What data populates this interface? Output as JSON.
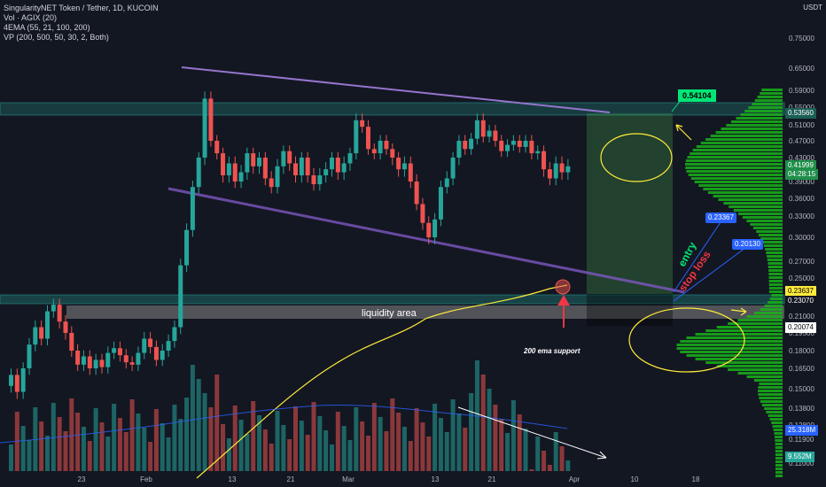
{
  "legend": {
    "title": "SingularityNET Token / Tether, 1D, KUCOIN",
    "vol": "Vol · AGIX (20)",
    "ema": "4EMA (55, 21, 100, 200)",
    "vp": "VP (200, 500, 50, 30, 2, Both)"
  },
  "currency": "USDT",
  "price_ticks": [
    "0.75000",
    "0.65000",
    "0.59000",
    "0.55000",
    "0.51000",
    "0.47000",
    "0.43000",
    "0.39000",
    "0.36000",
    "0.33000",
    "0.30000",
    "0.27000",
    "0.25000",
    "0.23000",
    "0.21000",
    "0.19500",
    "0.18000",
    "0.16500",
    "0.15000",
    "0.13800",
    "0.12800",
    "0.11900",
    "0.11000"
  ],
  "date_ticks": [
    "23",
    "Feb",
    "13",
    "21",
    "Mar",
    "13",
    "21",
    "Apr",
    "10",
    "18"
  ],
  "price_tags": {
    "target": "0.54104",
    "resistance": "0.53560",
    "current": "0.41999",
    "countdown": "04:28:15",
    "entry_level": "0.23637",
    "support": "0.23070",
    "stop_level": "0.20074",
    "vol1": "25.318M",
    "vol2": "9.552M"
  },
  "annotations": {
    "entry_box": "0.23367",
    "stop_box": "0.20130",
    "entry_text": "entry",
    "stop_text": "stop loss",
    "liquidity": "liquidity area",
    "ema_support": "200 ema support"
  },
  "colors": {
    "up": "#26a69a",
    "down": "#ef5350",
    "target_green": "#00e676",
    "purple": "#7e57c2",
    "ema_yellow": "#ffeb3b",
    "vp_green": "#19b319"
  },
  "chart_data": {
    "type": "candlestick",
    "title": "SingularityNET Token / Tether, 1D, KUCOIN",
    "ylabel": "USDT",
    "candles_approx": [
      [
        0.152,
        0.16
      ],
      [
        0.16,
        0.148
      ],
      [
        0.148,
        0.165
      ],
      [
        0.165,
        0.185
      ],
      [
        0.185,
        0.2
      ],
      [
        0.2,
        0.19
      ],
      [
        0.19,
        0.215
      ],
      [
        0.215,
        0.222
      ],
      [
        0.222,
        0.205
      ],
      [
        0.205,
        0.195
      ],
      [
        0.195,
        0.18
      ],
      [
        0.18,
        0.168
      ],
      [
        0.168,
        0.175
      ],
      [
        0.175,
        0.165
      ],
      [
        0.165,
        0.172
      ],
      [
        0.172,
        0.166
      ],
      [
        0.166,
        0.178
      ],
      [
        0.178,
        0.182
      ],
      [
        0.182,
        0.176
      ],
      [
        0.176,
        0.17
      ],
      [
        0.17,
        0.168
      ],
      [
        0.168,
        0.178
      ],
      [
        0.178,
        0.19
      ],
      [
        0.19,
        0.183
      ],
      [
        0.183,
        0.172
      ],
      [
        0.172,
        0.18
      ],
      [
        0.18,
        0.188
      ],
      [
        0.188,
        0.2
      ],
      [
        0.2,
        0.265
      ],
      [
        0.265,
        0.31
      ],
      [
        0.31,
        0.38
      ],
      [
        0.38,
        0.43
      ],
      [
        0.43,
        0.57
      ],
      [
        0.57,
        0.47
      ],
      [
        0.47,
        0.44
      ],
      [
        0.44,
        0.4
      ],
      [
        0.4,
        0.42
      ],
      [
        0.42,
        0.39
      ],
      [
        0.39,
        0.405
      ],
      [
        0.405,
        0.44
      ],
      [
        0.44,
        0.415
      ],
      [
        0.415,
        0.43
      ],
      [
        0.43,
        0.395
      ],
      [
        0.395,
        0.38
      ],
      [
        0.38,
        0.415
      ],
      [
        0.415,
        0.445
      ],
      [
        0.445,
        0.42
      ],
      [
        0.42,
        0.4
      ],
      [
        0.4,
        0.43
      ],
      [
        0.43,
        0.4
      ],
      [
        0.4,
        0.385
      ],
      [
        0.385,
        0.4
      ],
      [
        0.4,
        0.41
      ],
      [
        0.41,
        0.43
      ],
      [
        0.43,
        0.405
      ],
      [
        0.405,
        0.42
      ],
      [
        0.42,
        0.44
      ],
      [
        0.44,
        0.52
      ],
      [
        0.52,
        0.505
      ],
      [
        0.505,
        0.45
      ],
      [
        0.45,
        0.44
      ],
      [
        0.44,
        0.47
      ],
      [
        0.47,
        0.45
      ],
      [
        0.45,
        0.43
      ],
      [
        0.43,
        0.41
      ],
      [
        0.41,
        0.42
      ],
      [
        0.42,
        0.39
      ],
      [
        0.39,
        0.35
      ],
      [
        0.35,
        0.32
      ],
      [
        0.32,
        0.3
      ],
      [
        0.3,
        0.325
      ],
      [
        0.325,
        0.38
      ],
      [
        0.38,
        0.395
      ],
      [
        0.395,
        0.43
      ],
      [
        0.43,
        0.47
      ],
      [
        0.47,
        0.45
      ],
      [
        0.45,
        0.475
      ],
      [
        0.475,
        0.52
      ],
      [
        0.52,
        0.48
      ],
      [
        0.48,
        0.495
      ],
      [
        0.495,
        0.47
      ],
      [
        0.47,
        0.445
      ],
      [
        0.445,
        0.46
      ],
      [
        0.46,
        0.47
      ],
      [
        0.47,
        0.455
      ],
      [
        0.455,
        0.47
      ],
      [
        0.47,
        0.44
      ],
      [
        0.44,
        0.445
      ],
      [
        0.445,
        0.41
      ],
      [
        0.41,
        0.395
      ],
      [
        0.395,
        0.42
      ],
      [
        0.42,
        0.405
      ],
      [
        0.405,
        0.415
      ]
    ]
  }
}
